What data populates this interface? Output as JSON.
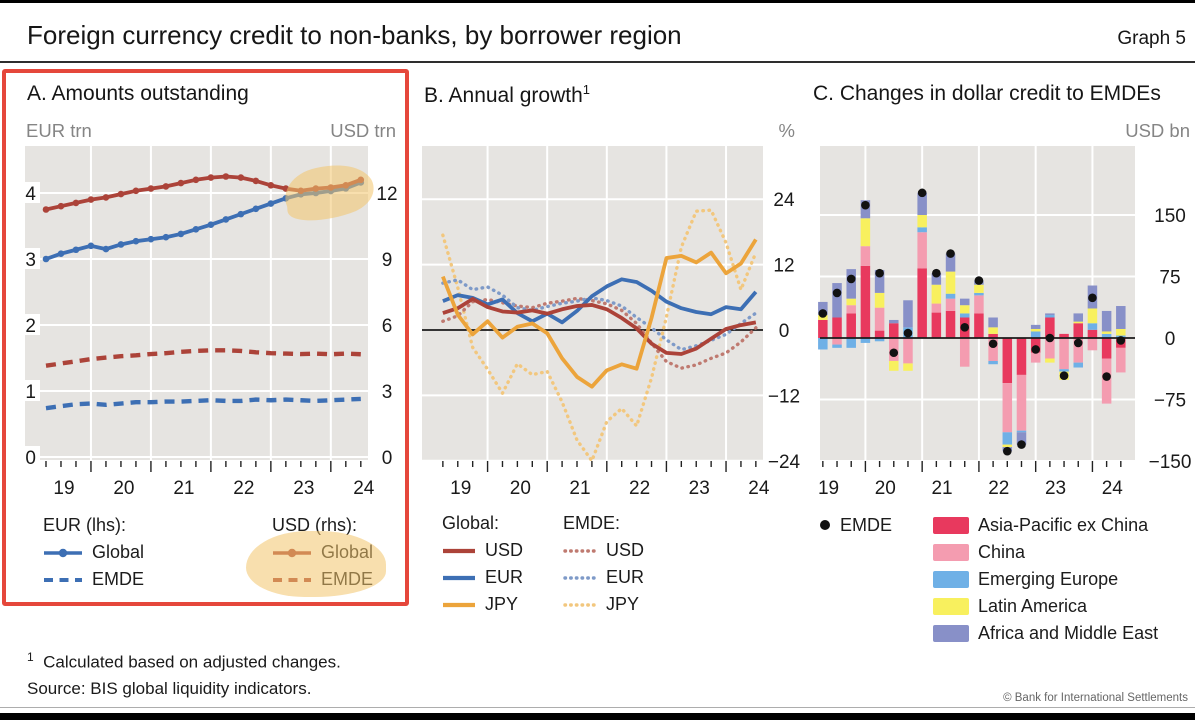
{
  "header": {
    "title": "Foreign currency credit to non-banks, by borrower region",
    "graph_label": "Graph 5"
  },
  "colors": {
    "usd": "#ac4339",
    "eur": "#3d6fb4",
    "jpy": "#eca43b",
    "usd_light": "#bf7a70",
    "eur_light": "#7e9ac8",
    "jpy_light": "#f2c77e",
    "asia": "#e8395e",
    "china": "#f49cb0",
    "europe": "#6fb0e6",
    "latam": "#f8f05e",
    "africa": "#8890c8",
    "emde_dot": "#121212",
    "plot_bg": "#e6e4e1",
    "grid": "#ffffff",
    "unit_text": "#858585",
    "tick_text": "#1a1a1a",
    "red_box": "#e5473b",
    "highlight": "rgba(243,197,107,0.55)"
  },
  "chart_data": [
    {
      "panel": "A",
      "type": "line",
      "title": "A. Amounts outstanding",
      "unit_left": "EUR trn",
      "unit_right": "USD trn",
      "y_left": {
        "ticks": [
          0,
          1,
          2,
          3,
          4
        ],
        "labels": [
          "0",
          "1",
          "2",
          "3",
          "4"
        ],
        "range": [
          0,
          4.7
        ]
      },
      "y_right": {
        "ticks": [
          0,
          3,
          6,
          9,
          12
        ],
        "labels": [
          "0",
          "3",
          "6",
          "9",
          "12"
        ],
        "range": [
          0,
          14.1
        ]
      },
      "x_points": [
        19.25,
        19.5,
        19.75,
        20.0,
        20.25,
        20.5,
        20.75,
        21.0,
        21.25,
        21.5,
        21.75,
        22.0,
        22.25,
        22.5,
        22.75,
        23.0,
        23.25,
        23.5,
        23.75,
        24.0,
        24.25,
        24.5
      ],
      "x_year_labels": [
        "19",
        "20",
        "21",
        "22",
        "23",
        "24"
      ],
      "series": [
        {
          "key": "eur_global",
          "label": "Global",
          "legend_group": "EUR (lhs):",
          "axis": "left",
          "style": "solid",
          "color": "eur",
          "values": [
            3.0,
            3.08,
            3.14,
            3.2,
            3.15,
            3.22,
            3.27,
            3.3,
            3.33,
            3.38,
            3.45,
            3.52,
            3.6,
            3.68,
            3.76,
            3.84,
            3.92,
            3.98,
            4.0,
            4.03,
            4.07,
            4.16
          ]
        },
        {
          "key": "eur_emde",
          "label": "EMDE",
          "legend_group": "EUR (lhs):",
          "axis": "left",
          "style": "dashed",
          "color": "eur",
          "values": [
            0.74,
            0.77,
            0.8,
            0.81,
            0.79,
            0.81,
            0.83,
            0.83,
            0.84,
            0.84,
            0.85,
            0.86,
            0.85,
            0.85,
            0.87,
            0.86,
            0.87,
            0.86,
            0.85,
            0.86,
            0.87,
            0.88
          ]
        },
        {
          "key": "usd_global",
          "label": "Global",
          "legend_group": "USD (rhs):",
          "axis": "right",
          "style": "solid",
          "color": "usd",
          "values": [
            11.25,
            11.4,
            11.55,
            11.7,
            11.8,
            11.95,
            12.1,
            12.2,
            12.3,
            12.45,
            12.6,
            12.7,
            12.75,
            12.7,
            12.55,
            12.35,
            12.2,
            12.1,
            12.2,
            12.25,
            12.35,
            12.6
          ]
        },
        {
          "key": "usd_emde",
          "label": "EMDE",
          "legend_group": "USD (rhs):",
          "axis": "right",
          "style": "dashed",
          "color": "usd",
          "values": [
            4.15,
            4.25,
            4.35,
            4.45,
            4.52,
            4.58,
            4.62,
            4.68,
            4.72,
            4.78,
            4.82,
            4.85,
            4.85,
            4.82,
            4.76,
            4.72,
            4.7,
            4.68,
            4.7,
            4.67,
            4.7,
            4.67
          ]
        }
      ],
      "legend": {
        "columns": [
          {
            "header": "EUR (lhs):",
            "items": [
              {
                "label": "Global",
                "swatch": "line-dot",
                "color": "eur"
              },
              {
                "label": "EMDE",
                "swatch": "line-dash",
                "color": "eur"
              }
            ]
          },
          {
            "header": "USD (rhs):",
            "highlighted": true,
            "items": [
              {
                "label": "Global",
                "swatch": "line-dot",
                "color": "usd"
              },
              {
                "label": "EMDE",
                "swatch": "line-dash",
                "color": "usd"
              }
            ]
          }
        ]
      },
      "annotations": {
        "red_box": true,
        "highlight_on_chart": "end of Global lines 2023-2024",
        "highlight_on_legend": "USD (rhs) Global and EMDE entries"
      }
    },
    {
      "panel": "B",
      "type": "line",
      "title": "B. Annual growth",
      "title_sup": "1",
      "unit_right": "%",
      "y": {
        "ticks": [
          -24,
          -12,
          0,
          12,
          24
        ],
        "labels": [
          "−24",
          "−12",
          "0",
          "12",
          "24"
        ],
        "range": [
          -25.5,
          33
        ]
      },
      "x_points": [
        19.25,
        19.5,
        19.75,
        20.0,
        20.25,
        20.5,
        20.75,
        21.0,
        21.25,
        21.5,
        21.75,
        22.0,
        22.25,
        22.5,
        22.75,
        23.0,
        23.25,
        23.5,
        23.75,
        24.0,
        24.25,
        24.5
      ],
      "x_year_labels": [
        "19",
        "20",
        "21",
        "22",
        "23",
        "24"
      ],
      "series": [
        {
          "key": "global_usd",
          "label": "USD",
          "legend_group": "Global:",
          "style": "solid",
          "color": "usd",
          "values": [
            3.1,
            4.0,
            5.7,
            4.2,
            3.4,
            3.2,
            3.6,
            3.0,
            3.8,
            4.4,
            4.6,
            3.8,
            2.2,
            0.3,
            -2.5,
            -4.2,
            -4.4,
            -3.4,
            -1.6,
            0.2,
            0.9,
            1.4
          ]
        },
        {
          "key": "global_eur",
          "label": "EUR",
          "legend_group": "Global:",
          "style": "solid",
          "color": "eur",
          "values": [
            5.3,
            6.4,
            5.9,
            4.7,
            5.6,
            3.1,
            1.6,
            3.0,
            1.4,
            3.5,
            6.2,
            8.0,
            9.3,
            8.8,
            7.2,
            5.2,
            4.0,
            3.3,
            2.9,
            4.2,
            3.8,
            7.0
          ]
        },
        {
          "key": "global_jpy",
          "label": "JPY",
          "legend_group": "Global:",
          "style": "solid",
          "color": "jpy",
          "values": [
            9.8,
            2.8,
            -0.8,
            1.6,
            -1.4,
            0.6,
            1.2,
            -0.6,
            -5.2,
            -8.6,
            -10.4,
            -7.4,
            -6.3,
            -7.1,
            2.2,
            13.2,
            13.6,
            12.4,
            14.2,
            10.4,
            12.2,
            16.6
          ]
        },
        {
          "key": "emde_usd",
          "label": "USD",
          "legend_group": "EMDE:",
          "style": "dotted",
          "color": "usd_light",
          "values": [
            1.6,
            2.6,
            5.2,
            5.6,
            5.0,
            4.4,
            4.1,
            4.9,
            5.3,
            5.8,
            5.4,
            4.8,
            3.6,
            1.2,
            -2.4,
            -5.8,
            -7.0,
            -6.4,
            -5.2,
            -4.2,
            -2.2,
            0.4
          ]
        },
        {
          "key": "emde_eur",
          "label": "EUR",
          "legend_group": "EMDE:",
          "style": "dotted",
          "color": "eur_light",
          "values": [
            8.6,
            9.2,
            7.4,
            7.9,
            6.4,
            4.1,
            3.6,
            4.3,
            4.9,
            5.3,
            5.9,
            5.4,
            4.4,
            2.3,
            0.4,
            -1.8,
            -3.6,
            -2.9,
            -1.9,
            -0.8,
            1.2,
            3.1
          ]
        },
        {
          "key": "emde_jpy",
          "label": "JPY",
          "legend_group": "EMDE:",
          "style": "dotted",
          "color": "jpy_light",
          "values": [
            17.4,
            7.8,
            -3.2,
            -7.2,
            -11.6,
            -6.2,
            -8.2,
            -7.6,
            -13.2,
            -20.2,
            -24.0,
            -16.8,
            -14.4,
            -17.6,
            -8.8,
            2.4,
            15.2,
            21.8,
            22.0,
            16.0,
            7.4,
            14.2
          ]
        }
      ],
      "legend": {
        "columns": [
          {
            "header": "Global:",
            "items": [
              {
                "label": "USD",
                "swatch": "line",
                "color": "usd"
              },
              {
                "label": "EUR",
                "swatch": "line",
                "color": "eur"
              },
              {
                "label": "JPY",
                "swatch": "line",
                "color": "jpy"
              }
            ]
          },
          {
            "header": "EMDE:",
            "items": [
              {
                "label": "USD",
                "swatch": "dotted",
                "color": "usd_light"
              },
              {
                "label": "EUR",
                "swatch": "dotted",
                "color": "eur_light"
              },
              {
                "label": "JPY",
                "swatch": "dotted",
                "color": "jpy_light"
              }
            ]
          }
        ]
      }
    },
    {
      "panel": "C",
      "type": "stacked_bar",
      "title": "C. Changes in dollar credit to EMDEs",
      "unit_right": "USD bn",
      "y": {
        "ticks": [
          -150,
          -75,
          0,
          75,
          150
        ],
        "labels": [
          "−150",
          "−75",
          "0",
          "75",
          "150"
        ],
        "range": [
          -160,
          235
        ]
      },
      "x_points": [
        19.25,
        19.5,
        19.75,
        20.0,
        20.25,
        20.5,
        20.75,
        21.0,
        21.25,
        21.5,
        21.75,
        22.0,
        22.25,
        22.5,
        22.75,
        23.0,
        23.25,
        23.5,
        23.75,
        24.0,
        24.25,
        24.5
      ],
      "x_year_labels": [
        "19",
        "20",
        "21",
        "22",
        "23",
        "24"
      ],
      "series": [
        {
          "label": "Asia-Pacific ex China",
          "color": "asia",
          "values": [
            22,
            25,
            30,
            88,
            9,
            18,
            0,
            85,
            31,
            33,
            25,
            30,
            5,
            -55,
            -45,
            -18,
            25,
            5,
            18,
            10,
            -25,
            -12
          ]
        },
        {
          "label": "China",
          "color": "china",
          "values": [
            0,
            -8,
            10,
            24,
            28,
            -28,
            -31,
            44,
            11,
            15,
            -35,
            22,
            -28,
            -60,
            -68,
            -12,
            -25,
            -38,
            -30,
            -15,
            -55,
            -30
          ]
        },
        {
          "label": "Emerging Europe",
          "color": "europe",
          "values": [
            -14,
            -4,
            -12,
            -6,
            -4,
            0,
            13,
            6,
            0,
            6,
            5,
            3,
            -4,
            -15,
            -2,
            8,
            3,
            -3,
            -6,
            8,
            5,
            3
          ]
        },
        {
          "label": "Latin America",
          "color": "latam",
          "values": [
            6,
            0,
            8,
            34,
            18,
            -12,
            -9,
            15,
            23,
            27,
            10,
            10,
            8,
            -3,
            0,
            3,
            -5,
            -10,
            2,
            18,
            3,
            8
          ]
        },
        {
          "label": "Africa and Middle East",
          "color": "africa",
          "values": [
            16,
            42,
            36,
            22,
            28,
            4,
            33,
            27,
            14,
            22,
            8,
            5,
            12,
            -5,
            -15,
            5,
            2,
            0,
            10,
            28,
            25,
            28
          ]
        }
      ],
      "dots": {
        "label": "EMDE",
        "color": "emde_dot",
        "values": [
          30,
          55,
          72,
          162,
          79,
          -18,
          6,
          177,
          79,
          103,
          13,
          70,
          -7,
          -138,
          -130,
          -14,
          0,
          -46,
          -6,
          49,
          -47,
          -3
        ]
      },
      "legend": {
        "dot_item": {
          "label": "EMDE"
        },
        "items": [
          {
            "label": "Asia-Pacific ex China",
            "color": "asia"
          },
          {
            "label": "China",
            "color": "china"
          },
          {
            "label": "Emerging Europe",
            "color": "europe"
          },
          {
            "label": "Latin America",
            "color": "latam"
          },
          {
            "label": "Africa and Middle East",
            "color": "africa"
          }
        ]
      }
    }
  ],
  "footer": {
    "footnote_marker": "1",
    "footnote_text": "Calculated based on adjusted changes.",
    "source": "Source: BIS global liquidity indicators.",
    "copyright": "© Bank for International Settlements"
  }
}
